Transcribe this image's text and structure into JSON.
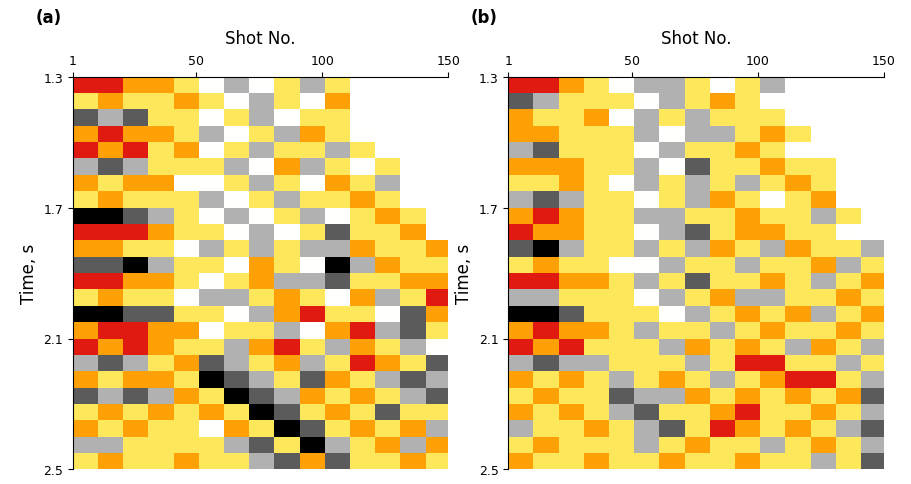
{
  "chart_data": [
    {
      "type": "heatmap",
      "title": "(a)",
      "x_label": "Shot No.",
      "y_label": "Time, s",
      "xlim": [
        1,
        150
      ],
      "xticks": [
        1,
        50,
        100,
        150
      ],
      "ylim": [
        2.5,
        1.3
      ],
      "yticks": [
        1.3,
        1.7,
        2.1,
        2.5
      ],
      "zlim": [
        -3,
        3
      ],
      "x_bins": [
        1,
        11,
        21,
        31,
        41,
        51,
        61,
        71,
        81,
        91,
        101,
        111,
        121,
        131,
        141,
        150
      ],
      "y_bins": [
        1.3,
        1.35,
        1.4,
        1.45,
        1.5,
        1.55,
        1.6,
        1.65,
        1.7,
        1.75,
        1.8,
        1.85,
        1.9,
        1.95,
        2.0,
        2.05,
        2.1,
        2.15,
        2.2,
        2.25,
        2.3,
        2.35,
        2.4,
        2.45,
        2.5
      ],
      "cells": [
        [
          3,
          3,
          2,
          2,
          1,
          0,
          -1,
          0,
          1,
          -1,
          1,
          null,
          null,
          null,
          null
        ],
        [
          1,
          2,
          1,
          1,
          2,
          1,
          0,
          -1,
          1,
          0,
          2,
          null,
          null,
          null,
          null
        ],
        [
          -2,
          -1,
          -2,
          1,
          1,
          0,
          1,
          -1,
          0,
          1,
          1,
          null,
          null,
          null,
          null
        ],
        [
          2,
          3,
          2,
          2,
          1,
          -1,
          0,
          1,
          -1,
          2,
          1,
          0,
          null,
          null,
          null
        ],
        [
          3,
          2,
          3,
          1,
          2,
          0,
          1,
          -1,
          1,
          1,
          -1,
          1,
          null,
          null,
          null
        ],
        [
          -1,
          -2,
          -1,
          1,
          1,
          1,
          -1,
          0,
          2,
          -1,
          1,
          0,
          1,
          null,
          null
        ],
        [
          2,
          1,
          2,
          2,
          0,
          0,
          1,
          -1,
          1,
          0,
          2,
          1,
          -1,
          null,
          null
        ],
        [
          1,
          2,
          1,
          1,
          1,
          -1,
          0,
          1,
          -1,
          1,
          1,
          2,
          1,
          null,
          null
        ],
        [
          -3,
          -3,
          -2,
          -1,
          1,
          0,
          -1,
          0,
          1,
          -1,
          0,
          1,
          2,
          1,
          null
        ],
        [
          3,
          3,
          3,
          2,
          1,
          1,
          0,
          -1,
          0,
          1,
          -2,
          1,
          1,
          2,
          null
        ],
        [
          2,
          2,
          1,
          1,
          0,
          -1,
          1,
          -1,
          1,
          -1,
          -1,
          2,
          1,
          1,
          2
        ],
        [
          -2,
          -2,
          -3,
          -1,
          1,
          1,
          0,
          2,
          1,
          0,
          -3,
          -1,
          2,
          1,
          1
        ],
        [
          3,
          3,
          2,
          2,
          1,
          0,
          1,
          2,
          -1,
          -1,
          -2,
          1,
          1,
          2,
          2
        ],
        [
          1,
          2,
          1,
          1,
          0,
          -1,
          -1,
          1,
          2,
          1,
          0,
          2,
          -1,
          1,
          3
        ],
        [
          -3,
          -3,
          -2,
          -2,
          1,
          1,
          0,
          -1,
          2,
          3,
          1,
          1,
          0,
          -2,
          2
        ],
        [
          2,
          3,
          3,
          2,
          2,
          0,
          1,
          1,
          -1,
          0,
          2,
          3,
          -1,
          -2,
          1
        ],
        [
          3,
          2,
          3,
          2,
          1,
          1,
          -1,
          2,
          3,
          1,
          -1,
          2,
          1,
          -1,
          0
        ],
        [
          -1,
          -2,
          -1,
          1,
          2,
          -2,
          -1,
          1,
          2,
          -1,
          1,
          3,
          2,
          1,
          -2
        ],
        [
          2,
          1,
          2,
          2,
          1,
          -3,
          -2,
          -1,
          1,
          -2,
          2,
          1,
          -1,
          -2,
          -1
        ],
        [
          -2,
          -1,
          -2,
          -1,
          2,
          1,
          -3,
          -2,
          -1,
          2,
          1,
          2,
          1,
          -1,
          -2
        ],
        [
          1,
          2,
          1,
          2,
          1,
          2,
          1,
          -3,
          -2,
          1,
          2,
          1,
          -2,
          1,
          1
        ],
        [
          2,
          1,
          2,
          1,
          1,
          0,
          2,
          1,
          -3,
          -2,
          1,
          2,
          1,
          2,
          -1
        ],
        [
          -1,
          -1,
          1,
          1,
          1,
          1,
          -1,
          -2,
          1,
          -3,
          -1,
          1,
          2,
          -1,
          2
        ],
        [
          1,
          2,
          1,
          1,
          2,
          1,
          1,
          -1,
          -2,
          2,
          -2,
          1,
          1,
          2,
          1
        ]
      ]
    },
    {
      "type": "heatmap",
      "title": "(b)",
      "x_label": "Shot No.",
      "y_label": "Time, s",
      "xlim": [
        1,
        150
      ],
      "xticks": [
        1,
        50,
        100,
        150
      ],
      "ylim": [
        2.5,
        1.3
      ],
      "yticks": [
        1.3,
        1.7,
        2.1,
        2.5
      ],
      "zlim": [
        -3,
        3
      ],
      "x_bins": [
        1,
        11,
        21,
        31,
        41,
        51,
        61,
        71,
        81,
        91,
        101,
        111,
        121,
        131,
        141,
        150
      ],
      "y_bins": [
        1.3,
        1.35,
        1.4,
        1.45,
        1.5,
        1.55,
        1.6,
        1.65,
        1.7,
        1.75,
        1.8,
        1.85,
        1.9,
        1.95,
        2.0,
        2.05,
        2.1,
        2.15,
        2.2,
        2.25,
        2.3,
        2.35,
        2.4,
        2.45,
        2.5
      ],
      "cells": [
        [
          3,
          3,
          2,
          1,
          0,
          -1,
          -1,
          1,
          0,
          1,
          -1,
          null,
          null,
          null,
          null
        ],
        [
          -2,
          -1,
          1,
          1,
          1,
          0,
          -1,
          1,
          2,
          1,
          0,
          null,
          null,
          null,
          null
        ],
        [
          2,
          1,
          1,
          2,
          0,
          -1,
          1,
          -1,
          1,
          1,
          1,
          null,
          null,
          null,
          null
        ],
        [
          2,
          2,
          1,
          1,
          1,
          -1,
          0,
          -1,
          -1,
          1,
          2,
          1,
          null,
          null,
          null
        ],
        [
          -1,
          -2,
          1,
          1,
          1,
          0,
          -1,
          1,
          1,
          2,
          1,
          0,
          null,
          null,
          null
        ],
        [
          2,
          2,
          2,
          1,
          1,
          -1,
          0,
          -2,
          1,
          1,
          2,
          1,
          1,
          null,
          null
        ],
        [
          1,
          1,
          2,
          1,
          0,
          -1,
          1,
          -1,
          1,
          -1,
          1,
          2,
          1,
          null,
          null
        ],
        [
          -1,
          -2,
          -1,
          1,
          1,
          0,
          1,
          -1,
          2,
          1,
          0,
          1,
          2,
          null,
          null
        ],
        [
          2,
          3,
          2,
          1,
          1,
          -1,
          -1,
          1,
          1,
          2,
          1,
          1,
          -1,
          1,
          null
        ],
        [
          3,
          2,
          2,
          1,
          1,
          0,
          -1,
          -2,
          1,
          2,
          2,
          1,
          1,
          0,
          null
        ],
        [
          -2,
          -3,
          -1,
          1,
          1,
          -1,
          1,
          -1,
          2,
          1,
          -1,
          2,
          1,
          1,
          -1
        ],
        [
          1,
          2,
          1,
          1,
          0,
          0,
          -1,
          1,
          1,
          -1,
          1,
          1,
          2,
          -1,
          1
        ],
        [
          3,
          3,
          2,
          2,
          1,
          -1,
          1,
          -2,
          1,
          1,
          2,
          1,
          -1,
          1,
          2
        ],
        [
          -1,
          -1,
          1,
          1,
          1,
          0,
          -1,
          1,
          2,
          -1,
          -1,
          1,
          1,
          2,
          1
        ],
        [
          -3,
          -3,
          -2,
          1,
          1,
          1,
          0,
          -1,
          1,
          2,
          1,
          2,
          -1,
          1,
          2
        ],
        [
          2,
          3,
          2,
          2,
          1,
          -1,
          1,
          1,
          -1,
          1,
          2,
          1,
          1,
          2,
          1
        ],
        [
          3,
          2,
          3,
          1,
          1,
          1,
          -1,
          2,
          1,
          2,
          1,
          -1,
          2,
          1,
          -1
        ],
        [
          -1,
          -2,
          -1,
          -1,
          1,
          1,
          1,
          -1,
          1,
          3,
          3,
          1,
          1,
          -1,
          1
        ],
        [
          2,
          1,
          2,
          1,
          -1,
          1,
          2,
          1,
          -1,
          1,
          2,
          3,
          3,
          1,
          -1
        ],
        [
          1,
          2,
          1,
          1,
          -2,
          -1,
          -1,
          2,
          1,
          2,
          1,
          2,
          1,
          2,
          -2
        ],
        [
          2,
          1,
          2,
          1,
          -1,
          -2,
          1,
          1,
          2,
          3,
          1,
          1,
          2,
          1,
          -1
        ],
        [
          -1,
          1,
          1,
          2,
          1,
          -1,
          -2,
          1,
          3,
          2,
          1,
          2,
          1,
          -1,
          -2
        ],
        [
          1,
          2,
          1,
          1,
          1,
          -1,
          1,
          2,
          1,
          1,
          -1,
          1,
          2,
          1,
          -1
        ],
        [
          2,
          1,
          1,
          2,
          1,
          1,
          2,
          1,
          1,
          2,
          1,
          1,
          -1,
          1,
          -2
        ]
      ]
    }
  ]
}
